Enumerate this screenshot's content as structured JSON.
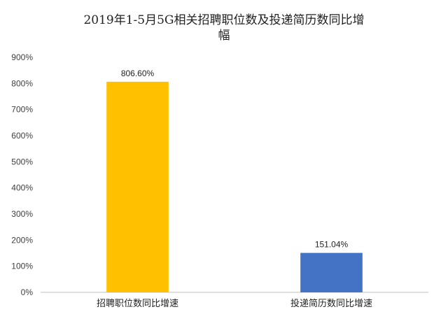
{
  "chart_data": {
    "type": "bar",
    "title_lines": [
      "2019年1-5月5G相关招聘职位数及投递简历数同比增",
      "幅"
    ],
    "categories": [
      "招聘职位数同比增速",
      "投递简历数同比增速"
    ],
    "values": [
      806.6,
      151.04
    ],
    "value_labels": [
      "806.60%",
      "151.04%"
    ],
    "bar_colors": [
      "#FFC000",
      "#4472C4"
    ],
    "ylim": [
      0,
      900
    ],
    "yticks": [
      0,
      100,
      200,
      300,
      400,
      500,
      600,
      700,
      800,
      900
    ],
    "ytick_labels": [
      "0%",
      "100%",
      "200%",
      "300%",
      "400%",
      "500%",
      "600%",
      "700%",
      "800%",
      "900%"
    ],
    "grid": false,
    "legend": "none"
  }
}
